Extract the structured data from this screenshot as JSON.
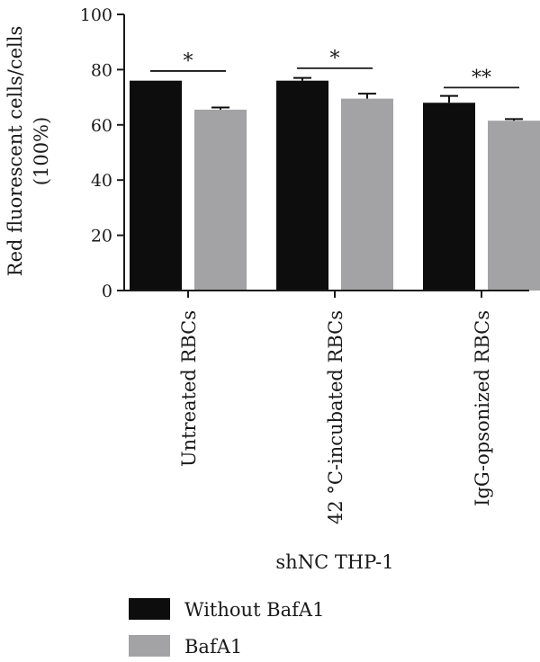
{
  "chart_data": {
    "type": "bar",
    "ylabel_line1": "Red fluorescent cells/cells",
    "ylabel_line2": "(100%)",
    "xlabel": "shNC THP-1",
    "ylim": [
      0,
      100
    ],
    "yticks": [
      0,
      20,
      40,
      60,
      80,
      100
    ],
    "categories": [
      "Untreated RBCs",
      "42 °C-incubated RBCs",
      "IgG-opsonized RBCs"
    ],
    "series": [
      {
        "name": "Without BafA1",
        "color": "#0d0d0d",
        "values": [
          76,
          76,
          68
        ],
        "errors": [
          0,
          1,
          2.5
        ]
      },
      {
        "name": "BafA1",
        "color": "#a3a3a6",
        "values": [
          65.5,
          69.5,
          61.5
        ],
        "errors": [
          0.8,
          1.8,
          0.6
        ]
      }
    ],
    "significance": [
      {
        "label": "*",
        "value": 79.5
      },
      {
        "label": "*",
        "value": 80.5
      },
      {
        "label": "**",
        "value": 73.5
      }
    ],
    "legend_position": "bottom-left",
    "grid": false
  }
}
